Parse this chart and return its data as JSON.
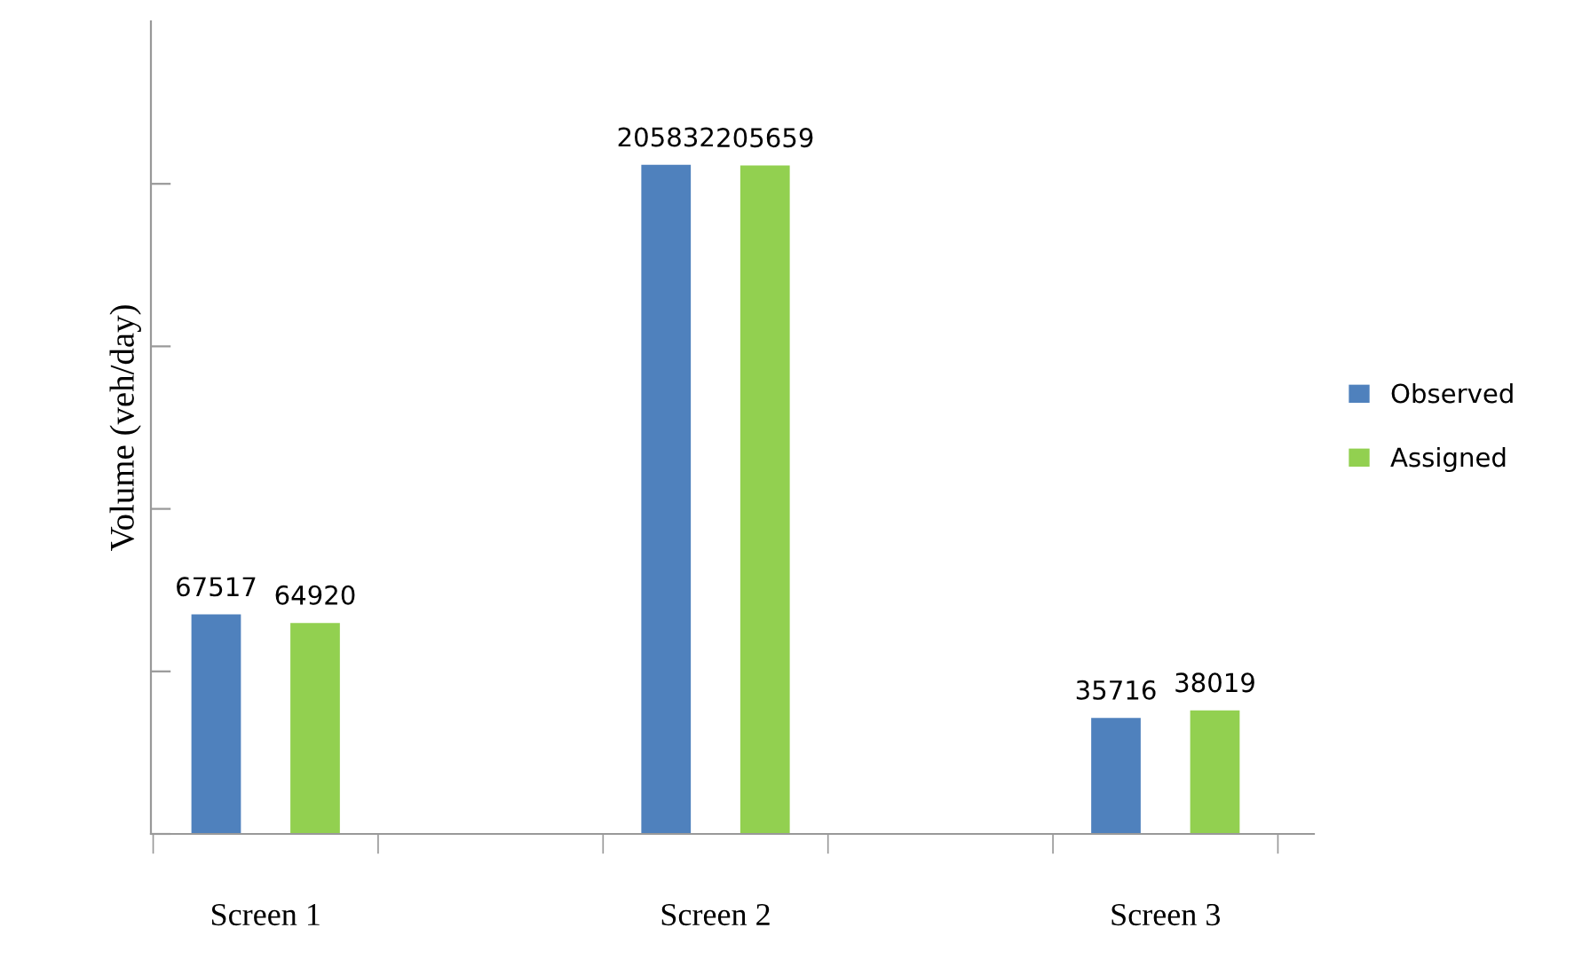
{
  "chart_data": {
    "type": "bar",
    "ylabel": "Volume (veh/day)",
    "categories": [
      "Screen 1",
      "Screen 2",
      "Screen 3"
    ],
    "series": [
      {
        "name": "Observed",
        "color": "#4f81bd",
        "values": [
          67517,
          205832,
          35716
        ]
      },
      {
        "name": "Assigned",
        "color": "#92d050",
        "values": [
          64920,
          205659,
          38019
        ]
      }
    ],
    "ylim": [
      0,
      250000
    ],
    "yticks": [
      {
        "value": 0,
        "label": null
      },
      {
        "value": 50000,
        "label": null
      },
      {
        "value": 100000,
        "label": null
      },
      {
        "value": 150000,
        "label": null
      },
      {
        "value": 200000,
        "label": null
      }
    ],
    "tick_labels": "x",
    "data_labels": true,
    "legend": "right",
    "grid": false
  }
}
